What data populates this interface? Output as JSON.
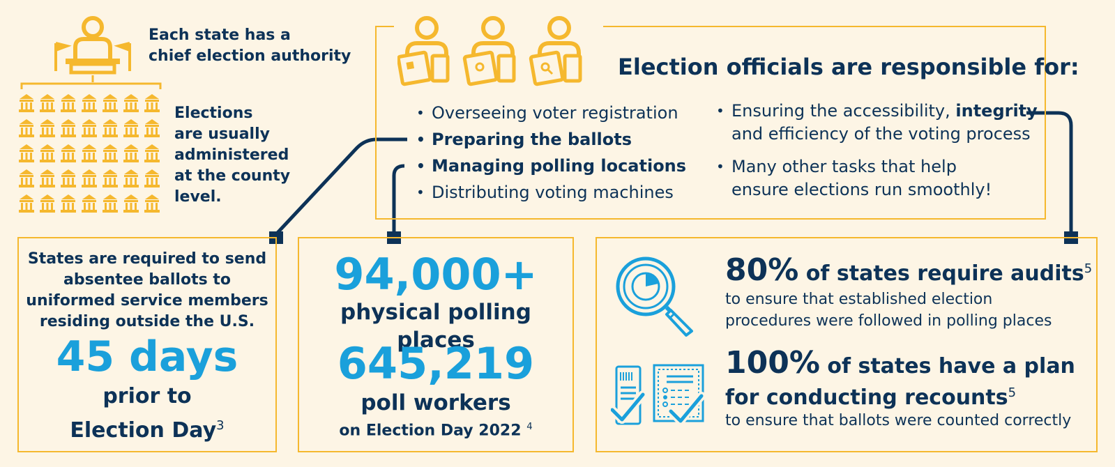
{
  "chief": {
    "line1": "Each state has a",
    "line2": "chief election authority"
  },
  "county": {
    "lines": [
      "Elections",
      "are usually",
      "administered",
      "at the county",
      "level."
    ]
  },
  "officials": {
    "title": "Election officials are responsible for:",
    "col1": [
      {
        "text": "Overseeing voter registration",
        "bold": false
      },
      {
        "text": "Preparing the ballots",
        "bold": true
      },
      {
        "text": "Managing polling locations",
        "bold": true
      },
      {
        "text": "Distributing voting machines",
        "bold": false
      }
    ],
    "col2_item1_a": "Ensuring the accessibility, ",
    "col2_item1_bold": "integrity",
    "col2_item1_b": "and efficiency of the voting process",
    "col2_item2_a": "Many other tasks that help",
    "col2_item2_b": "ensure elections run smoothly!"
  },
  "absentee": {
    "lines": [
      "States are required to send",
      "absentee ballots to",
      "uniformed service members",
      "residing outside the U.S."
    ],
    "big": "45 days",
    "sub1": "prior to",
    "sub2": "Election Day",
    "ref": "3"
  },
  "polling": {
    "big1": "94,000+",
    "sub1": "physical polling places",
    "big2": "645,219",
    "sub2": "poll workers",
    "sub3": "on Election Day 2022",
    "ref": "4"
  },
  "audits": {
    "pct": "80%",
    "head": " of states require audits",
    "ref": "5",
    "line1": "to ensure that established election",
    "line2": "procedures were followed in polling places"
  },
  "recounts": {
    "pct": "100%",
    "head1": " of states have a plan",
    "head2": "for conducting recounts",
    "ref": "5",
    "line1": "to ensure that ballots were counted correctly"
  },
  "colors": {
    "navy": "#0d3257",
    "blue": "#1aa0db",
    "gold": "#f5b82e",
    "background": "#fdf5e5"
  },
  "icons": [
    "official-podium-icon",
    "courthouse-icon",
    "official-id-card-icon",
    "official-ballot-icon",
    "official-search-icon",
    "magnifier-chart-icon",
    "checked-ballots-icon"
  ]
}
